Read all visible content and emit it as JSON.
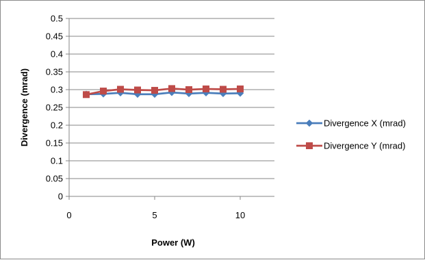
{
  "chart_data": {
    "type": "line",
    "xlabel": "Power (W)",
    "ylabel": "Divergence (mrad)",
    "xlim": [
      0,
      12
    ],
    "ylim": [
      0,
      0.5
    ],
    "x_ticks": [
      "0",
      "5",
      "10"
    ],
    "x_tick_values": [
      0,
      5,
      10
    ],
    "y_ticks": [
      "0",
      "0.05",
      "0.1",
      "0.15",
      "0.2",
      "0.25",
      "0.3",
      "0.35",
      "0.4",
      "0.45",
      "0.5"
    ],
    "y_tick_values": [
      0,
      0.05,
      0.1,
      0.15,
      0.2,
      0.25,
      0.3,
      0.35,
      0.4,
      0.45,
      0.5
    ],
    "grid": "horizontal",
    "legend_position": "right",
    "series": [
      {
        "name": "Divergence X (mrad)",
        "color": "#4a7ebb",
        "marker": "diamond",
        "x": [
          1,
          2,
          3,
          4,
          5,
          6,
          7,
          8,
          9,
          10
        ],
        "values": [
          0.287,
          0.288,
          0.291,
          0.287,
          0.287,
          0.292,
          0.289,
          0.291,
          0.289,
          0.29
        ]
      },
      {
        "name": "Divergence Y (mrad)",
        "color": "#be4b48",
        "marker": "square",
        "x": [
          1,
          2,
          3,
          4,
          5,
          6,
          7,
          8,
          9,
          10
        ],
        "values": [
          0.286,
          0.296,
          0.301,
          0.299,
          0.298,
          0.303,
          0.3,
          0.302,
          0.301,
          0.302
        ]
      }
    ]
  }
}
